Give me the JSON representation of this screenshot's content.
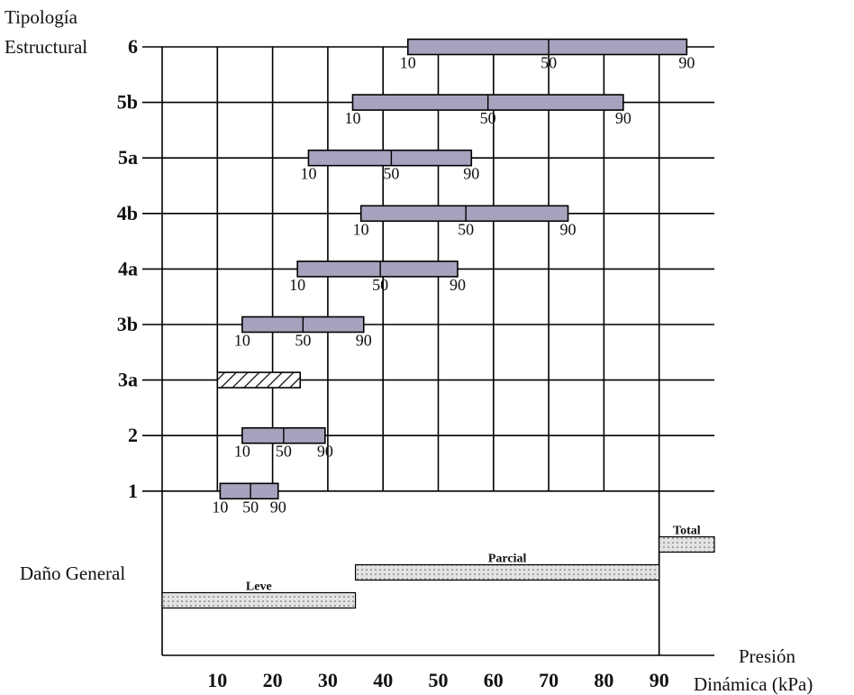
{
  "chart_data": {
    "type": "range_bar",
    "y_title_line1": "Tipología",
    "y_title_line2": "Estructural",
    "x_title_line1": "Presión",
    "x_title_line2": "Dinámica (kPa)",
    "x_ticks": [
      "10",
      "20",
      "30",
      "40",
      "50",
      "60",
      "70",
      "80",
      "90"
    ],
    "xlim": [
      0,
      100
    ],
    "grid": true,
    "percentile_labels": [
      "10",
      "50",
      "90"
    ],
    "typologies": [
      {
        "name": "6",
        "p10": 44.5,
        "p50": 70,
        "p90": 95
      },
      {
        "name": "5b",
        "p10": 34.5,
        "p50": 59,
        "p90": 83.5
      },
      {
        "name": "5a",
        "p10": 26.5,
        "p50": 41.5,
        "p90": 56
      },
      {
        "name": "4b",
        "p10": 36,
        "p50": 55,
        "p90": 73.5
      },
      {
        "name": "4a",
        "p10": 24.5,
        "p50": 39.5,
        "p90": 53.5
      },
      {
        "name": "3b",
        "p10": 14.5,
        "p50": 25.5,
        "p90": 36.5
      },
      {
        "name": "3a",
        "p10": 10,
        "p50": null,
        "p90": 25,
        "hatched": true
      },
      {
        "name": "2",
        "p10": 14.5,
        "p50": 22,
        "p90": 29.5
      },
      {
        "name": "1",
        "p10": 10.5,
        "p50": 16,
        "p90": 21
      }
    ],
    "damage_title": "Daño General",
    "damage_levels": [
      {
        "name": "Leve",
        "from": 0,
        "to": 35
      },
      {
        "name": "Parcial",
        "from": 35,
        "to": 90
      },
      {
        "name": "Total",
        "from": 90,
        "to": 100
      }
    ],
    "colors": {
      "bar_fill": "#a5a3bd",
      "damage_fill": "#e3e3e3",
      "hatch": "#000000"
    }
  }
}
